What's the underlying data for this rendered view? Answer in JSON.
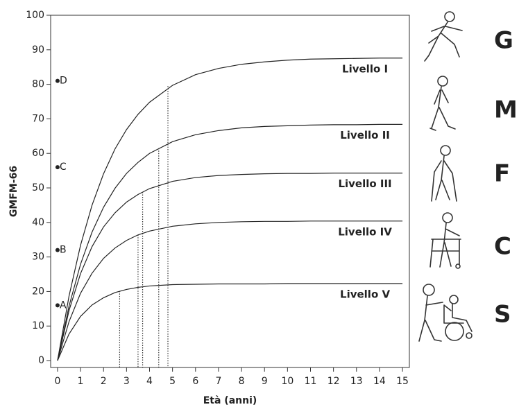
{
  "chart_data": {
    "type": "line",
    "xlabel": "Età (anni)",
    "ylabel": "GMFM-66",
    "x": [
      0,
      0.5,
      1,
      1.5,
      2,
      2.5,
      3,
      3.5,
      4,
      5,
      6,
      7,
      8,
      9,
      10,
      11,
      12,
      13,
      14,
      15
    ],
    "series": [
      {
        "name": "Livello I",
        "color": "#222222",
        "guide": {
          "x": 4.8,
          "y": 79.5
        },
        "values": [
          0,
          18.7,
          33.4,
          45.0,
          54.1,
          61.3,
          66.9,
          71.3,
          74.8,
          79.7,
          82.8,
          84.6,
          85.8,
          86.5,
          87.0,
          87.3,
          87.4,
          87.5,
          87.6,
          87.6
        ]
      },
      {
        "name": "Livello II",
        "color": "#222222",
        "guide": {
          "x": 4.4,
          "y": 61.5
        },
        "values": [
          0,
          15.8,
          27.9,
          37.2,
          44.4,
          49.9,
          54.2,
          57.4,
          60.0,
          63.4,
          65.4,
          66.6,
          67.4,
          67.8,
          68.0,
          68.2,
          68.3,
          68.3,
          68.4,
          68.4
        ]
      },
      {
        "name": "Livello III",
        "color": "#222222",
        "guide": {
          "x": 3.7,
          "y": 48.8
        },
        "values": [
          0,
          14.5,
          25.2,
          33.0,
          38.7,
          42.8,
          45.9,
          48.1,
          49.8,
          51.9,
          53.0,
          53.6,
          53.9,
          54.1,
          54.2,
          54.2,
          54.3,
          54.3,
          54.3,
          54.3
        ]
      },
      {
        "name": "Livello IV",
        "color": "#222222",
        "guide": {
          "x": 3.5,
          "y": 36.4
        },
        "values": [
          0,
          11.3,
          19.5,
          25.3,
          29.6,
          32.6,
          34.8,
          36.4,
          37.5,
          38.9,
          39.6,
          40.0,
          40.2,
          40.3,
          40.3,
          40.4,
          40.4,
          40.4,
          40.4,
          40.4
        ]
      },
      {
        "name": "Livello V",
        "color": "#222222",
        "guide": {
          "x": 2.7,
          "y": 20.1
        },
        "values": [
          0,
          7.7,
          12.8,
          16.1,
          18.2,
          19.7,
          20.6,
          21.2,
          21.6,
          22.0,
          22.1,
          22.2,
          22.2,
          22.2,
          22.3,
          22.3,
          22.3,
          22.3,
          22.3,
          22.3
        ]
      }
    ],
    "points": [
      {
        "label": "A",
        "value": 16
      },
      {
        "label": "B",
        "value": 32
      },
      {
        "label": "C",
        "value": 56
      },
      {
        "label": "D",
        "value": 81
      }
    ],
    "side_labels": [
      "G",
      "M",
      "F",
      "C",
      "S"
    ],
    "xlim": [
      -0.3,
      15.3
    ],
    "ylim": [
      -2,
      100
    ],
    "xticks": [
      0,
      1,
      2,
      3,
      4,
      5,
      6,
      7,
      8,
      9,
      10,
      11,
      12,
      13,
      14,
      15
    ],
    "yticks": [
      0,
      10,
      20,
      30,
      40,
      50,
      60,
      70,
      80,
      90,
      100
    ],
    "grid": false
  }
}
